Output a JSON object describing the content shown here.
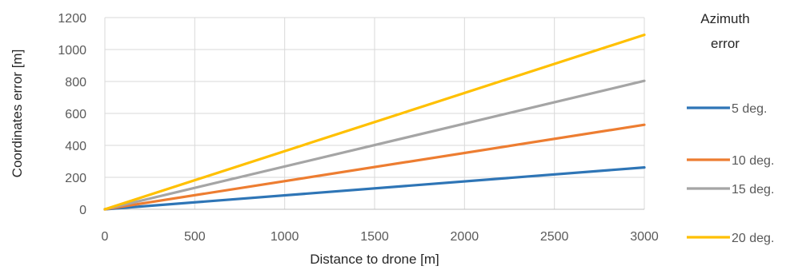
{
  "chart_data": {
    "type": "line",
    "title": "",
    "xlabel": "Distance to drone [m]",
    "ylabel": "Coordinates error [m]",
    "xlim": [
      0,
      3000
    ],
    "ylim": [
      0,
      1200
    ],
    "x_ticks": [
      0,
      500,
      1000,
      1500,
      2000,
      2500,
      3000
    ],
    "y_ticks": [
      0,
      200,
      400,
      600,
      800,
      1000,
      1200
    ],
    "x_tick_labels": [
      "0",
      "500",
      "1000",
      "1500",
      "2000",
      "2500",
      "3000"
    ],
    "y_tick_labels": [
      "0",
      "200",
      "400",
      "600",
      "800",
      "1000",
      "1200"
    ],
    "grid": true,
    "legend": {
      "title_lines": [
        "Azimuth",
        "error"
      ],
      "position": "right"
    },
    "series": [
      {
        "name": "5 deg.",
        "color": "#2E75B6",
        "x": [
          0,
          3000
        ],
        "y": [
          0,
          262
        ]
      },
      {
        "name": "10 deg.",
        "color": "#ED7D31",
        "x": [
          0,
          3000
        ],
        "y": [
          0,
          529
        ]
      },
      {
        "name": "15 deg.",
        "color": "#A5A5A5",
        "x": [
          0,
          3000
        ],
        "y": [
          0,
          804
        ]
      },
      {
        "name": "20 deg.",
        "color": "#FFC000",
        "x": [
          0,
          3000
        ],
        "y": [
          0,
          1092
        ]
      }
    ]
  }
}
